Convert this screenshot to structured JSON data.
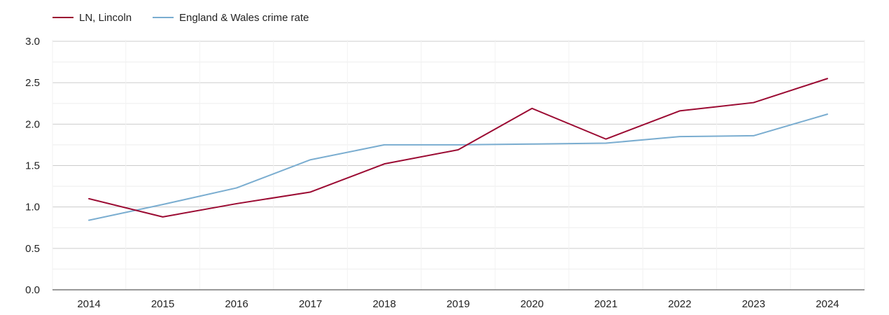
{
  "chart_data": {
    "type": "line",
    "title": "",
    "xlabel": "",
    "ylabel": "",
    "ylim": [
      0,
      3
    ],
    "yticks": [
      "0.0",
      "0.5",
      "1.0",
      "1.5",
      "2.0",
      "2.5",
      "3.0"
    ],
    "grid": true,
    "legend_position": "top-left",
    "categories": [
      "2014",
      "2015",
      "2016",
      "2017",
      "2018",
      "2019",
      "2020",
      "2021",
      "2022",
      "2023",
      "2024"
    ],
    "series": [
      {
        "name": "LN, Lincoln",
        "color": "#9b0a32",
        "values": [
          1.1,
          0.88,
          1.04,
          1.18,
          1.52,
          1.69,
          2.19,
          1.82,
          2.16,
          2.26,
          2.55
        ]
      },
      {
        "name": "England & Wales crime rate",
        "color": "#7aadd0",
        "values": [
          0.84,
          1.03,
          1.23,
          1.57,
          1.75,
          1.75,
          1.76,
          1.77,
          1.85,
          1.86,
          2.12
        ]
      }
    ]
  }
}
